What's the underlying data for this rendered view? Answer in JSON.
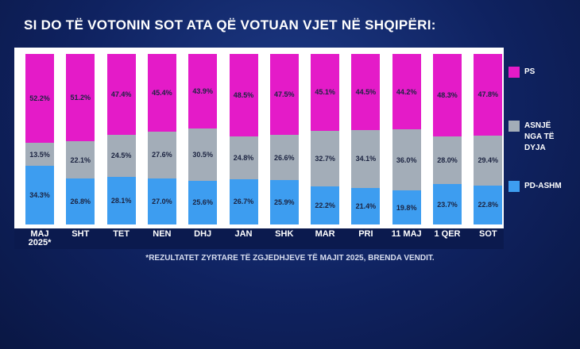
{
  "chart_data": {
    "type": "stacked_bar",
    "title": "SI DO TË VOTONIN SOT ATA QË VOTUAN VJET NË SHQIPËRI:",
    "footnote": "*REZULTATET ZYRTARE TË ZGJEDHJEVE TË MAJIT 2025, BRENDA VENDIT.",
    "categories": [
      "MAJ 2025*",
      "SHT",
      "TET",
      "NEN",
      "DHJ",
      "JAN",
      "SHK",
      "MAR",
      "PRI",
      "11 MAJ",
      "1 QER",
      "SOT"
    ],
    "series": [
      {
        "name": "PD-ASHM",
        "color": "#3d9df0",
        "values": [
          34.3,
          26.8,
          28.1,
          27.0,
          25.6,
          26.7,
          25.9,
          22.2,
          21.4,
          19.8,
          23.7,
          22.8
        ],
        "value_labels": [
          "34.3%",
          "26.8%",
          "28.1%",
          "27.0%",
          "25.6%",
          "26.7%",
          "25.9%",
          "22.2%",
          "21.4%",
          "19.8%",
          "23.7%",
          "22.8%"
        ]
      },
      {
        "name": "ASNJË NGA TË DYJA",
        "color": "#a3adb8",
        "values": [
          13.5,
          22.1,
          24.5,
          27.6,
          30.5,
          24.8,
          26.6,
          32.7,
          34.1,
          36.0,
          28.0,
          29.4
        ],
        "value_labels": [
          "13.5%",
          "22.1%",
          "24.5%",
          "27.6%",
          "30.5%",
          "24.8%",
          "26.6%",
          "32.7%",
          "34.1%",
          "36.0%",
          "28.0%",
          "29.4%"
        ]
      },
      {
        "name": "PS",
        "color": "#e41bc8",
        "values": [
          52.2,
          51.2,
          47.4,
          45.4,
          43.9,
          48.5,
          47.5,
          45.1,
          44.5,
          44.2,
          48.3,
          47.8
        ],
        "value_labels": [
          "52.2%",
          "51.2%",
          "47.4%",
          "45.4%",
          "43.9%",
          "48.5%",
          "47.5%",
          "45.1%",
          "44.5%",
          "44.2%",
          "48.3%",
          "47.8%"
        ]
      }
    ]
  }
}
